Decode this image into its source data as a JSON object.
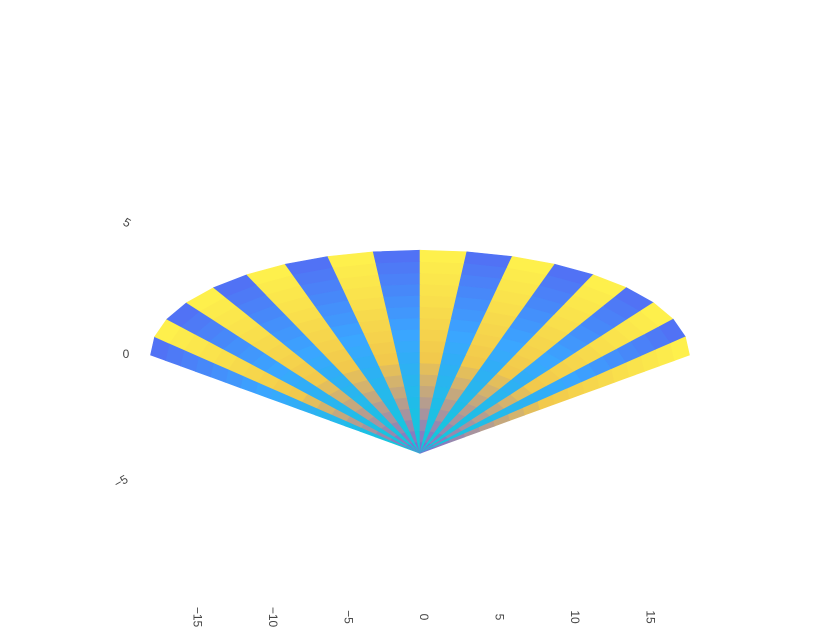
{
  "chart_data": {
    "type": "heatmap",
    "subtype": "carpet",
    "title": "",
    "xlabel": "",
    "ylabel": "",
    "xlim": [
      -17.5,
      17.5
    ],
    "ylim": [
      -8,
      8
    ],
    "xticks": [
      -15,
      -10,
      -5,
      0,
      5,
      10,
      15
    ],
    "yticks": [
      -5,
      0,
      5
    ],
    "xtick_labels": [
      "−15",
      "−10",
      "−5",
      "0",
      "5",
      "10",
      "15"
    ],
    "ytick_labels": [
      "−5",
      "0",
      "5"
    ],
    "a": [
      0,
      1,
      2,
      3,
      4,
      5,
      6,
      7,
      8,
      9,
      10,
      11,
      12,
      13,
      14,
      15,
      16,
      17
    ],
    "b": [
      0,
      1,
      2,
      3,
      4,
      5,
      6,
      7,
      8,
      9,
      10,
      11,
      12,
      13,
      14,
      15,
      16,
      17
    ],
    "mapping": "x = a*cos(theta), y = a*sin(theta), theta = -pi/2 + pi*b/17",
    "colorscale": [
      "#0fcbd8",
      "#3aa6ff",
      "#5b5cf0",
      "#f2c94c",
      "#fff44c"
    ],
    "zmin": 0,
    "zmax": 1,
    "z_rule": "z = (i mod 2)*0.5 + (j mod 2)*0.45 + i/34",
    "showgrid": false,
    "showlegend": false
  }
}
